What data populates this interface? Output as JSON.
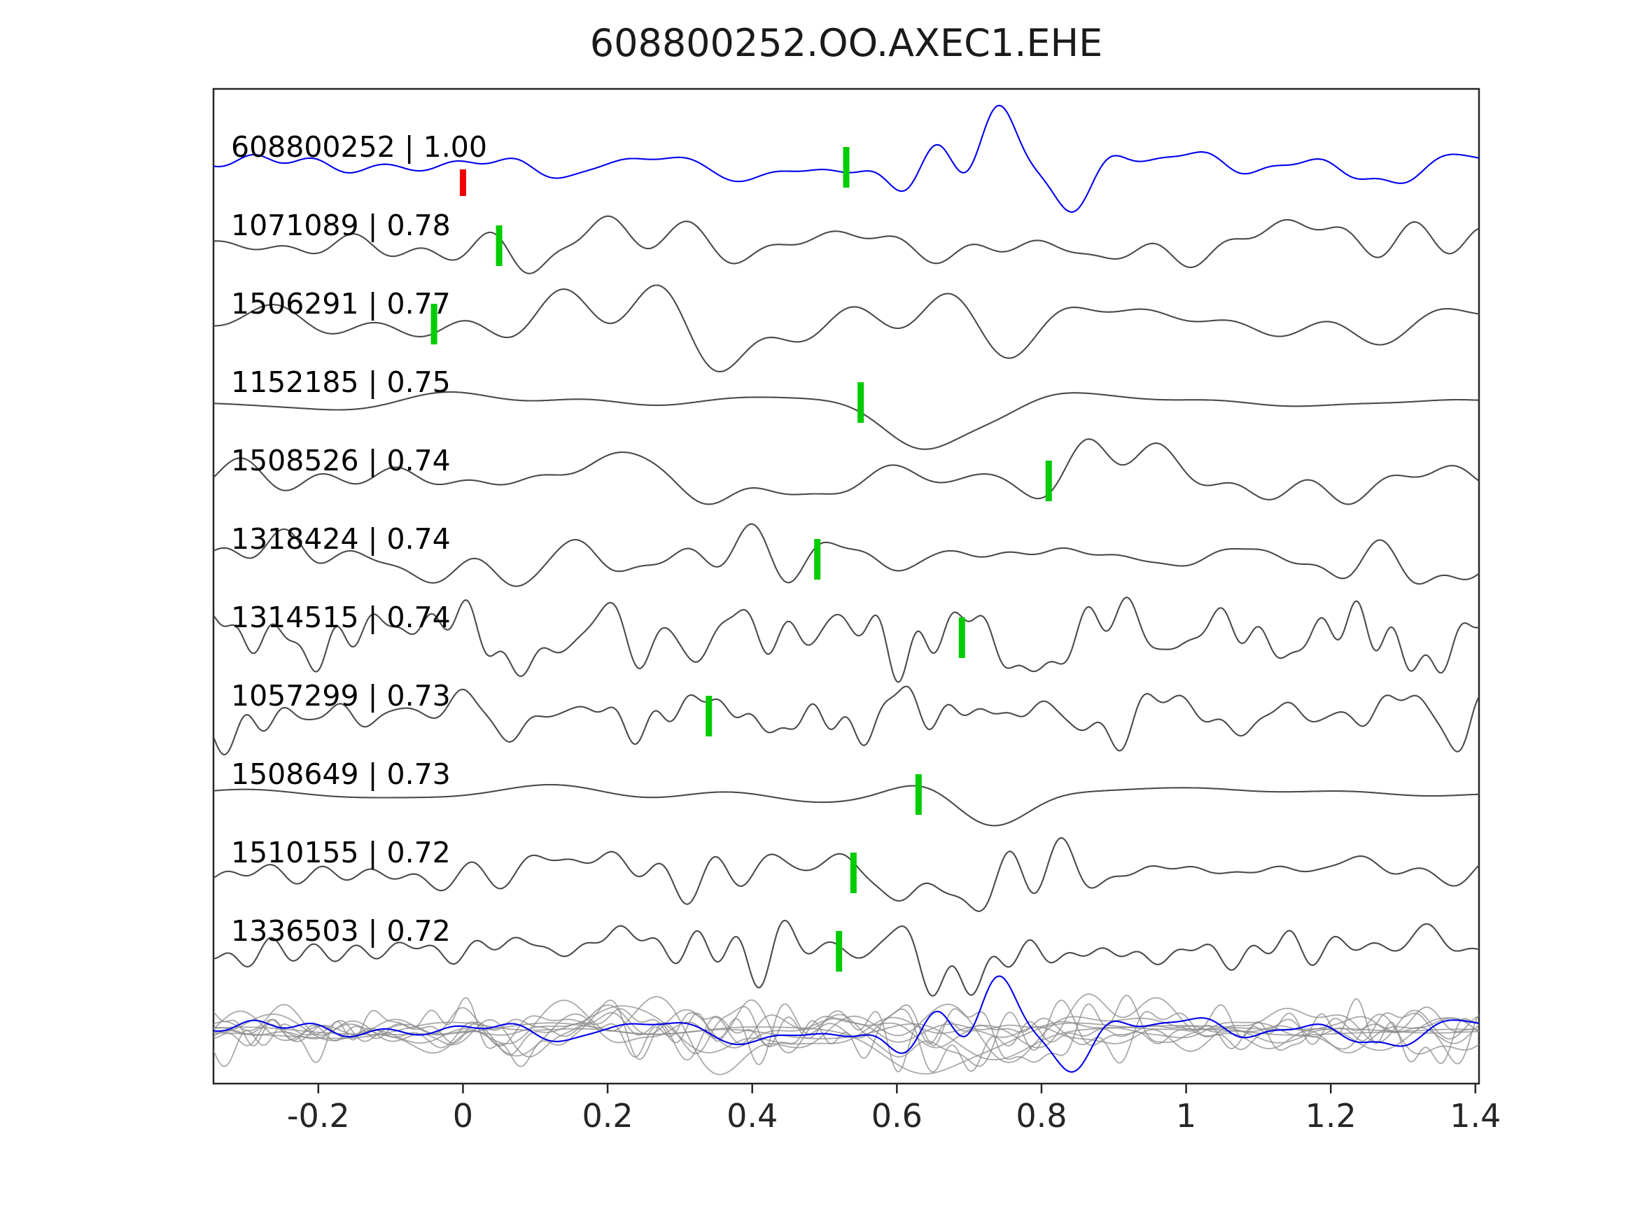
{
  "title": "608800252.OO.AXEC1.EHE",
  "colors": {
    "template_trace": "#0000ee",
    "match_trace": "#4a4a4a",
    "overlay_trace": "#8c8c8c",
    "pick_green": "#00cc00",
    "pick_red": "#ee0000",
    "axis": "#262626",
    "label_text": "#000000"
  },
  "chart_data": {
    "type": "line",
    "title": "608800252.OO.AXEC1.EHE",
    "xlabel": "",
    "ylabel": "",
    "x_range": [
      -0.345,
      1.405
    ],
    "x_ticks": [
      -0.2,
      0,
      0.2,
      0.4,
      0.6,
      0.8,
      1,
      1.2,
      1.4
    ],
    "x_tick_labels": [
      "-0.2",
      "0",
      "0.2",
      "0.4",
      "0.6",
      "0.8",
      "1",
      "1.2",
      "1.4"
    ],
    "grid": false,
    "legend": "none",
    "description": "Template waveform (blue, top) with cross-correlation matched event waveforms below; green ticks are picks, red tick is template origin pick; bottom row overlays all traces in gray with the template in blue.",
    "traces": [
      {
        "id": "608800252",
        "correlation": "1.00",
        "label": "608800252 | 1.00",
        "role": "template",
        "picks": [
          {
            "x": 0.0,
            "color": "red"
          },
          {
            "x": 0.53,
            "color": "green"
          }
        ],
        "synth": {
          "seed": 17,
          "fmax": 13,
          "falloff": 0.5,
          "base": 28,
          "bursts": [
            {
              "x": 0.72,
              "w": 0.13,
              "amp": 60
            },
            {
              "x": 1.27,
              "w": 0.05,
              "amp": 10
            }
          ]
        }
      },
      {
        "id": "1071089",
        "correlation": "0.78",
        "label": "1071089 | 0.78",
        "role": "match",
        "picks": [
          {
            "x": 0.05,
            "color": "green"
          }
        ],
        "synth": {
          "seed": 23,
          "fmax": 11,
          "falloff": 0.5,
          "base": 36,
          "bursts": [
            {
              "x": 0.12,
              "w": 0.07,
              "amp": 54
            }
          ]
        }
      },
      {
        "id": "1506291",
        "correlation": "0.77",
        "label": "1506291 | 0.77",
        "role": "match",
        "picks": [
          {
            "x": -0.04,
            "color": "green"
          }
        ],
        "synth": {
          "seed": 31,
          "fmax": 7,
          "falloff": 0.4,
          "base": 48,
          "bursts": [
            {
              "x": 0.15,
              "w": 0.25,
              "amp": 31
            }
          ]
        }
      },
      {
        "id": "1152185",
        "correlation": "0.75",
        "label": "1152185 | 0.75",
        "role": "match",
        "picks": [
          {
            "x": 0.55,
            "color": "green"
          }
        ],
        "synth": {
          "seed": 47,
          "fmax": 5,
          "falloff": 0.3,
          "base": 14,
          "bursts": [
            {
              "x": 0.68,
              "w": 0.08,
              "amp": 94
            }
          ]
        }
      },
      {
        "id": "1508526",
        "correlation": "0.74",
        "label": "1508526 | 0.74",
        "role": "match",
        "picks": [
          {
            "x": 0.81,
            "color": "green"
          }
        ],
        "synth": {
          "seed": 53,
          "fmax": 10,
          "falloff": 0.5,
          "base": 40,
          "bursts": [
            {
              "x": 0.88,
              "w": 0.07,
              "amp": 58
            }
          ]
        }
      },
      {
        "id": "1318424",
        "correlation": "0.74",
        "label": "1318424 | 0.74",
        "role": "match",
        "picks": [
          {
            "x": 0.49,
            "color": "green"
          }
        ],
        "synth": {
          "seed": 61,
          "fmax": 13,
          "falloff": 0.5,
          "base": 42,
          "bursts": [
            {
              "x": 0.62,
              "w": 0.12,
              "amp": 46
            }
          ]
        }
      },
      {
        "id": "1314515",
        "correlation": "0.74",
        "label": "1314515 | 0.74",
        "role": "match",
        "picks": [
          {
            "x": 0.69,
            "color": "green"
          }
        ],
        "synth": {
          "seed": 71,
          "fmax": 22,
          "falloff": 0.3,
          "base": 56,
          "bursts": [
            {
              "x": 0.72,
              "w": 0.15,
              "amp": 19
            }
          ]
        }
      },
      {
        "id": "1057299",
        "correlation": "0.73",
        "label": "1057299 | 0.73",
        "role": "match",
        "picks": [
          {
            "x": 0.34,
            "color": "green"
          }
        ],
        "synth": {
          "seed": 83,
          "fmax": 22,
          "falloff": 0.3,
          "base": 56,
          "bursts": [
            {
              "x": 0.5,
              "w": 0.12,
              "amp": 26
            }
          ]
        }
      },
      {
        "id": "1508649",
        "correlation": "0.73",
        "label": "1508649 | 0.73",
        "role": "match",
        "picks": [
          {
            "x": 0.63,
            "color": "green"
          }
        ],
        "synth": {
          "seed": 97,
          "fmax": 4,
          "falloff": 0.3,
          "base": 13,
          "bursts": [
            {
              "x": 0.74,
              "w": 0.09,
              "amp": 96
            }
          ]
        }
      },
      {
        "id": "1510155",
        "correlation": "0.72",
        "label": "1510155 | 0.72",
        "role": "match",
        "picks": [
          {
            "x": 0.54,
            "color": "green"
          }
        ],
        "synth": {
          "seed": 103,
          "fmax": 16,
          "falloff": 0.4,
          "base": 45,
          "bursts": [
            {
              "x": 0.68,
              "w": 0.12,
              "amp": 54
            }
          ]
        }
      },
      {
        "id": "1336503",
        "correlation": "0.72",
        "label": "1336503 | 0.72",
        "role": "match",
        "picks": [
          {
            "x": 0.52,
            "color": "green"
          }
        ],
        "synth": {
          "seed": 113,
          "fmax": 19,
          "falloff": 0.35,
          "base": 50,
          "bursts": [
            {
              "x": 0.65,
              "w": 0.1,
              "amp": 48
            }
          ]
        }
      }
    ],
    "overlay_row": {
      "includes": "all traces overlapped",
      "gray_alpha": 0.75,
      "template_on_top": true
    }
  }
}
